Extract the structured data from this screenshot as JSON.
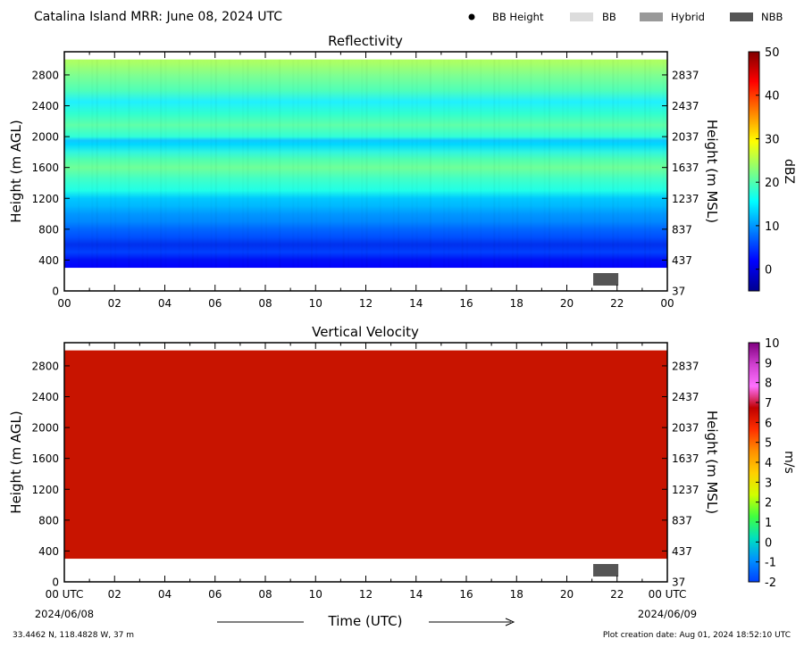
{
  "header": {
    "title": "Catalina Island MRR:  June 08, 2024 UTC",
    "legend": [
      {
        "label": "BB Height",
        "symbol": "dot",
        "color": "#000000"
      },
      {
        "label": "BB",
        "symbol": "box",
        "color": "#dcdcdc"
      },
      {
        "label": "Hybrid",
        "symbol": "box",
        "color": "#999999"
      },
      {
        "label": "NBB",
        "symbol": "box",
        "color": "#555555"
      }
    ]
  },
  "footer": {
    "location": "33.4462 N, 118.4828 W, 37 m",
    "creation": "Plot creation date: Aug 01, 2024 18:52:10 UTC",
    "xlabel": "Time (UTC)",
    "start_date": "2024/06/08",
    "end_date": "2024/06/09"
  },
  "chart_data": [
    {
      "type": "heatmap",
      "title": "Reflectivity",
      "ylabel_left": "Height (m AGL)",
      "ylabel_right": "Height (m MSL)",
      "x_ticks": [
        "00",
        "02",
        "04",
        "06",
        "08",
        "10",
        "12",
        "14",
        "16",
        "18",
        "20",
        "22",
        "00"
      ],
      "xlim_hours": [
        0,
        24
      ],
      "ylim": [
        0,
        3100
      ],
      "y_ticks_left": [
        0,
        400,
        800,
        1200,
        1600,
        2000,
        2400,
        2800
      ],
      "y_ticks_right": [
        37,
        437,
        837,
        1237,
        1637,
        2037,
        2437,
        2837
      ],
      "data_bottom_m": 300,
      "data_top_m": 3000,
      "colorbar": {
        "label": "dBZ",
        "ticks": [
          0,
          10,
          20,
          30,
          40,
          50
        ],
        "range": [
          -5,
          50
        ],
        "colors": [
          "#00008f",
          "#0000ff",
          "#0080ff",
          "#00ffff",
          "#80ff80",
          "#ffff00",
          "#ff8000",
          "#ff0000",
          "#800000"
        ]
      },
      "profile": [
        {
          "height": 300,
          "color": "#0000ff"
        },
        {
          "height": 400,
          "color": "#0010f5"
        },
        {
          "height": 500,
          "color": "#0040ff"
        },
        {
          "height": 600,
          "color": "#0030ee"
        },
        {
          "height": 700,
          "color": "#0050ff"
        },
        {
          "height": 800,
          "color": "#0066ff"
        },
        {
          "height": 900,
          "color": "#0088ff"
        },
        {
          "height": 1000,
          "color": "#0098ff"
        },
        {
          "height": 1100,
          "color": "#00b8ff"
        },
        {
          "height": 1200,
          "color": "#00c8ff"
        },
        {
          "height": 1300,
          "color": "#20ffe8"
        },
        {
          "height": 1450,
          "color": "#40ffc8"
        },
        {
          "height": 1600,
          "color": "#70ff98"
        },
        {
          "height": 1700,
          "color": "#50ffb0"
        },
        {
          "height": 1800,
          "color": "#30f4e0"
        },
        {
          "height": 1900,
          "color": "#00d8ff"
        },
        {
          "height": 1950,
          "color": "#10c8ff"
        },
        {
          "height": 2000,
          "color": "#30ffd8"
        },
        {
          "height": 2150,
          "color": "#60ffa8"
        },
        {
          "height": 2300,
          "color": "#30ffd0"
        },
        {
          "height": 2450,
          "color": "#20f0ff"
        },
        {
          "height": 2600,
          "color": "#50ffb8"
        },
        {
          "height": 2800,
          "color": "#80ff90"
        },
        {
          "height": 2950,
          "color": "#a8ff68"
        },
        {
          "height": 3000,
          "color": "#b0ff60"
        }
      ],
      "bright_band": {
        "type": "NBB",
        "start_hour": 21.05,
        "end_hour": 22.05,
        "height_m": 130
      }
    },
    {
      "type": "heatmap",
      "title": "Vertical Velocity",
      "ylabel_left": "Height (m AGL)",
      "ylabel_right": "Height (m MSL)",
      "x_ticks": [
        "00 UTC",
        "02",
        "04",
        "06",
        "08",
        "10",
        "12",
        "14",
        "16",
        "18",
        "20",
        "22",
        "00 UTC"
      ],
      "xlim_hours": [
        0,
        24
      ],
      "ylim": [
        0,
        3100
      ],
      "y_ticks_left": [
        0,
        400,
        800,
        1200,
        1600,
        2000,
        2400,
        2800
      ],
      "y_ticks_right": [
        37,
        437,
        837,
        1237,
        1637,
        2037,
        2437,
        2837
      ],
      "data_bottom_m": 300,
      "data_top_m": 3000,
      "fill_color": "#c81400",
      "colorbar": {
        "label": "m/s",
        "ticks": [
          -2,
          -1,
          0,
          1,
          2,
          3,
          4,
          5,
          6,
          7,
          8,
          9,
          10
        ],
        "range": [
          -2,
          10
        ],
        "colors": [
          "#0040ff",
          "#0090ff",
          "#00e0c0",
          "#40ff40",
          "#d0ff00",
          "#ffd000",
          "#ff9000",
          "#ff3000",
          "#c00000",
          "#ff70ff",
          "#d040d0",
          "#800080"
        ]
      },
      "bright_band": {
        "type": "NBB",
        "start_hour": 21.05,
        "end_hour": 22.05,
        "height_m": 130
      }
    }
  ]
}
